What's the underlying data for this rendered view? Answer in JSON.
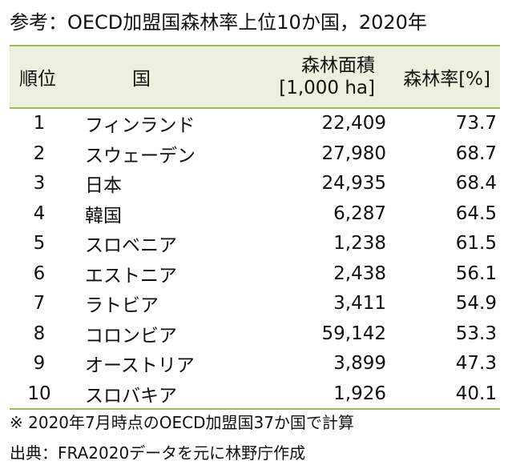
{
  "title": "参考：OECD加盟国森林率上位10か国，2020年",
  "headers": {
    "rank": "順位",
    "country": "国",
    "area_line1": "森林面積",
    "area_line2": "[1,000 ha]",
    "rate": "森林率[%]"
  },
  "rows": [
    {
      "rank": "1",
      "country": "フィンランド",
      "area": "22,409",
      "rate": "73.7"
    },
    {
      "rank": "2",
      "country": "スウェーデン",
      "area": "27,980",
      "rate": "68.7"
    },
    {
      "rank": "3",
      "country": "日本",
      "area": "24,935",
      "rate": "68.4"
    },
    {
      "rank": "4",
      "country": "韓国",
      "area": "6,287",
      "rate": "64.5"
    },
    {
      "rank": "5",
      "country": "スロベニア",
      "area": "1,238",
      "rate": "61.5"
    },
    {
      "rank": "6",
      "country": "エストニア",
      "area": "2,438",
      "rate": "56.1"
    },
    {
      "rank": "7",
      "country": "ラトビア",
      "area": "3,411",
      "rate": "54.9"
    },
    {
      "rank": "8",
      "country": "コロンビア",
      "area": "59,142",
      "rate": "53.3"
    },
    {
      "rank": "9",
      "country": "オーストリア",
      "area": "3,899",
      "rate": "47.3"
    },
    {
      "rank": "10",
      "country": "スロバキア",
      "area": "1,926",
      "rate": "40.1"
    }
  ],
  "note": "※ 2020年7月時点のOECD加盟国37か国で計算",
  "source": "出典：FRA2020データを元に林野庁作成",
  "colors": {
    "header_bg": "#ebf1de",
    "rule": "#9bbb59"
  }
}
